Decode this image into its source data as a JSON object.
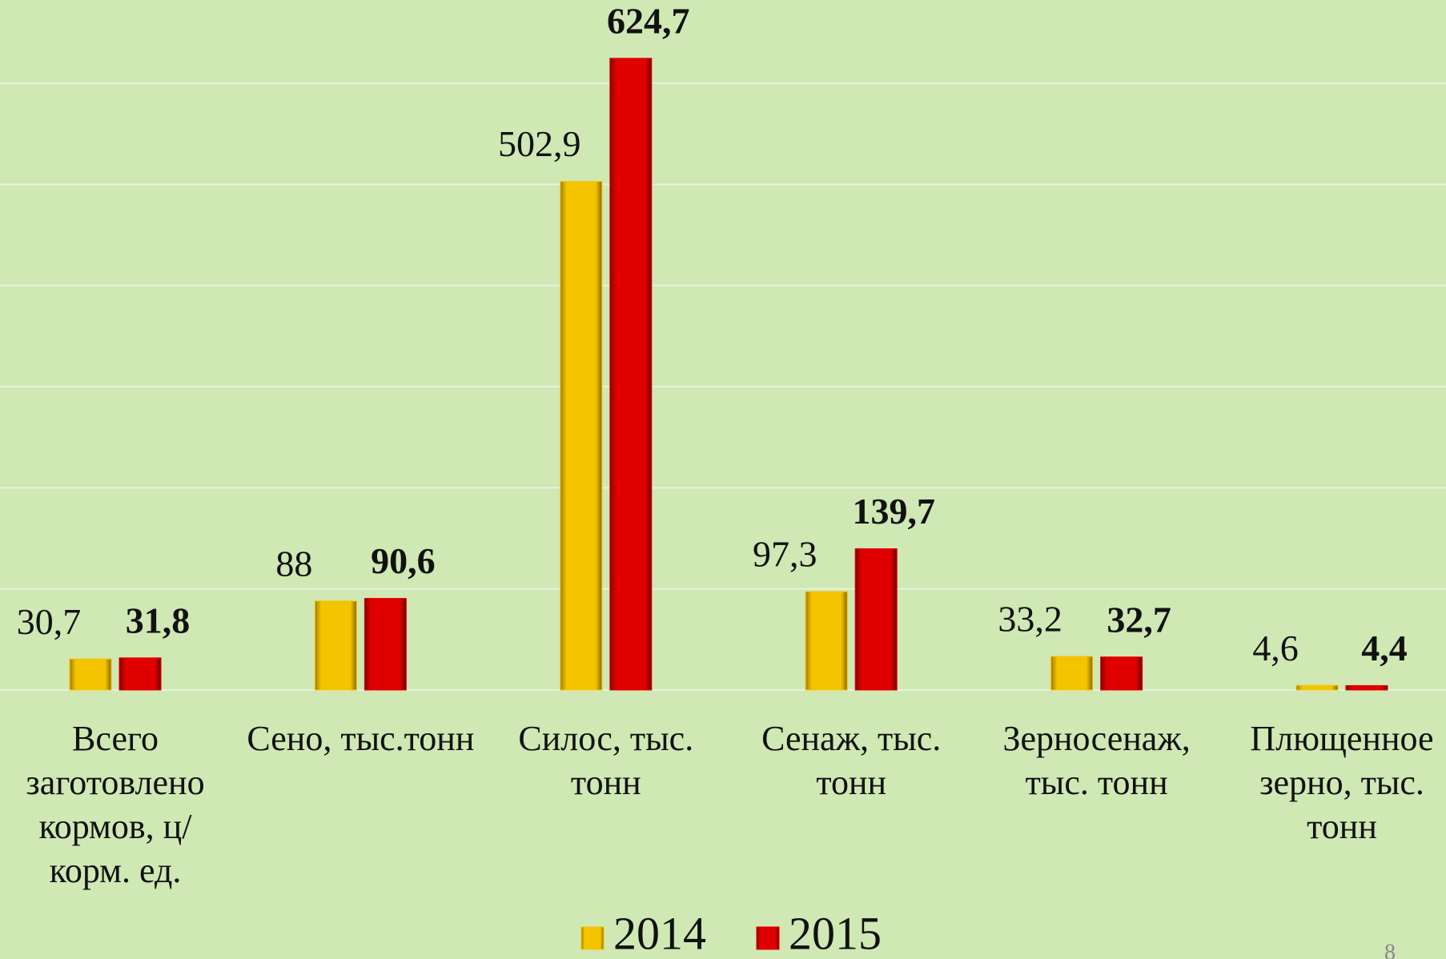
{
  "chart_data": {
    "type": "bar",
    "categories": [
      "Всего заготовлено кормов, ц/корм. ед.",
      "Сено, тыс.тонн",
      "Силос,  тыс. тонн",
      "Сенаж, тыс. тонн",
      "Зерносенаж, тыс. тонн",
      "Плющенное зерно, тыс. тонн"
    ],
    "series": [
      {
        "name": "2014",
        "color": "#f5c400",
        "values": [
          30.7,
          88,
          502.9,
          97.3,
          33.2,
          4.6
        ],
        "value_labels": [
          "30,7",
          "88",
          "502,9",
          "97,3",
          "33,2",
          "4,6"
        ]
      },
      {
        "name": "2015",
        "color": "#e00000",
        "values": [
          31.8,
          90.6,
          624.7,
          139.7,
          32.7,
          4.4
        ],
        "value_labels": [
          "31,8",
          "90,6",
          "624,7",
          "139,7",
          "32,7",
          "4,4"
        ]
      }
    ],
    "ylim": [
      0,
      600
    ],
    "yticks": [
      0,
      100,
      200,
      300,
      400,
      500,
      600
    ],
    "grid": true,
    "legend": "bottom",
    "page_number": "8"
  }
}
